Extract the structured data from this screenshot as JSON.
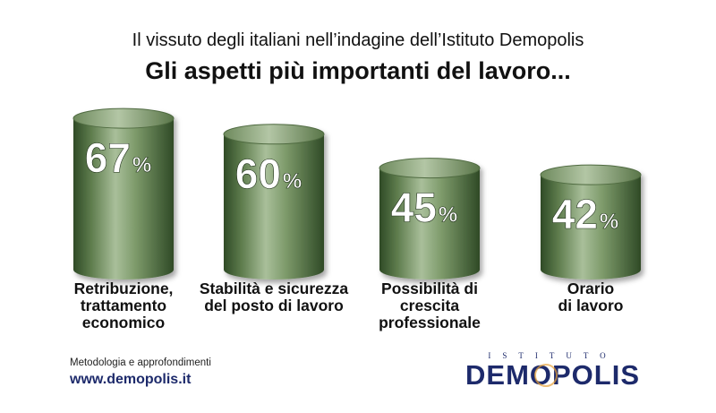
{
  "header": {
    "subtitle": "Il vissuto degli italiani nell’indagine dell’Istituto Demopolis",
    "title": "Gli aspetti più importanti del lavoro..."
  },
  "chart_data": {
    "type": "bar",
    "categories": [
      "Retribuzione,\ntrattamento\neconomico",
      "Stabilità e sicurezza\ndel posto di lavoro",
      "Possibilità di\ncrescita\nprofessionale",
      "Orario\ndi lavoro"
    ],
    "values": [
      67,
      60,
      45,
      42
    ],
    "value_labels": [
      "67",
      "60",
      "45",
      "42"
    ],
    "unit": "%",
    "ylim": [
      0,
      100
    ],
    "colors": {
      "cylinder_light": "#a9bf9a",
      "cylinder_mid": "#5f7d4e",
      "cylinder_dark": "#2f4a26",
      "top": "#8faa7c"
    }
  },
  "footer": {
    "note": "Metodologia e approfondimenti",
    "url": "www.demopolis.it"
  },
  "logo": {
    "top_text": "ISTITUTO",
    "main_text": "DEMOPOLIS",
    "accent_color": "#e8a33a",
    "brand_color": "#1d2a6b"
  }
}
